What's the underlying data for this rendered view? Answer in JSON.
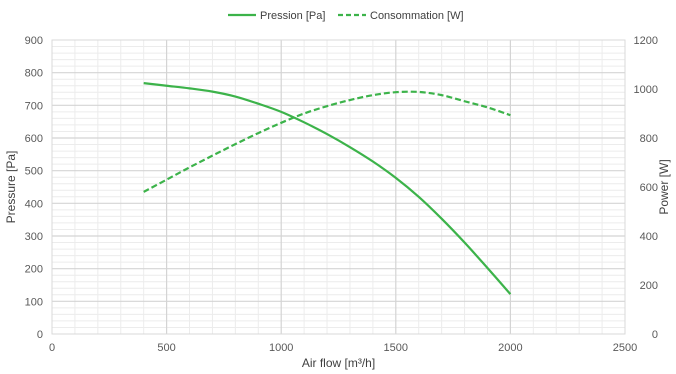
{
  "chart_data": {
    "type": "line",
    "xlabel": "Air flow [m³/h]",
    "ylabel": "Pressure [Pa]",
    "y2label": "Power [W]",
    "xlim": [
      0,
      2500
    ],
    "ylim": [
      0,
      900
    ],
    "y2lim": [
      0,
      1200
    ],
    "x_ticks": [
      0,
      500,
      1000,
      1500,
      2000,
      2500
    ],
    "y_ticks": [
      0,
      100,
      200,
      300,
      400,
      500,
      600,
      700,
      800,
      900
    ],
    "y2_ticks": [
      0,
      200,
      400,
      600,
      800,
      1000,
      1200
    ],
    "grid": true,
    "legend_position": "top",
    "series": [
      {
        "name": "Pression [Pa]",
        "axis": "left",
        "style": "solid",
        "color": "#3cb34a",
        "x": [
          400,
          500,
          600,
          700,
          800,
          900,
          1000,
          1100,
          1200,
          1300,
          1400,
          1500,
          1600,
          1700,
          1800,
          1900,
          2000
        ],
        "y": [
          768,
          760,
          752,
          742,
          727,
          705,
          680,
          648,
          612,
          572,
          528,
          478,
          420,
          353,
          280,
          202,
          122
        ]
      },
      {
        "name": "Consommation [W]",
        "axis": "right",
        "style": "dashed",
        "color": "#3cb34a",
        "x": [
          400,
          500,
          600,
          700,
          800,
          900,
          1000,
          1100,
          1200,
          1300,
          1400,
          1500,
          1600,
          1700,
          1800,
          1900,
          2000
        ],
        "y": [
          580,
          630,
          680,
          728,
          775,
          820,
          862,
          900,
          930,
          955,
          975,
          987,
          988,
          975,
          950,
          925,
          893
        ]
      }
    ]
  }
}
